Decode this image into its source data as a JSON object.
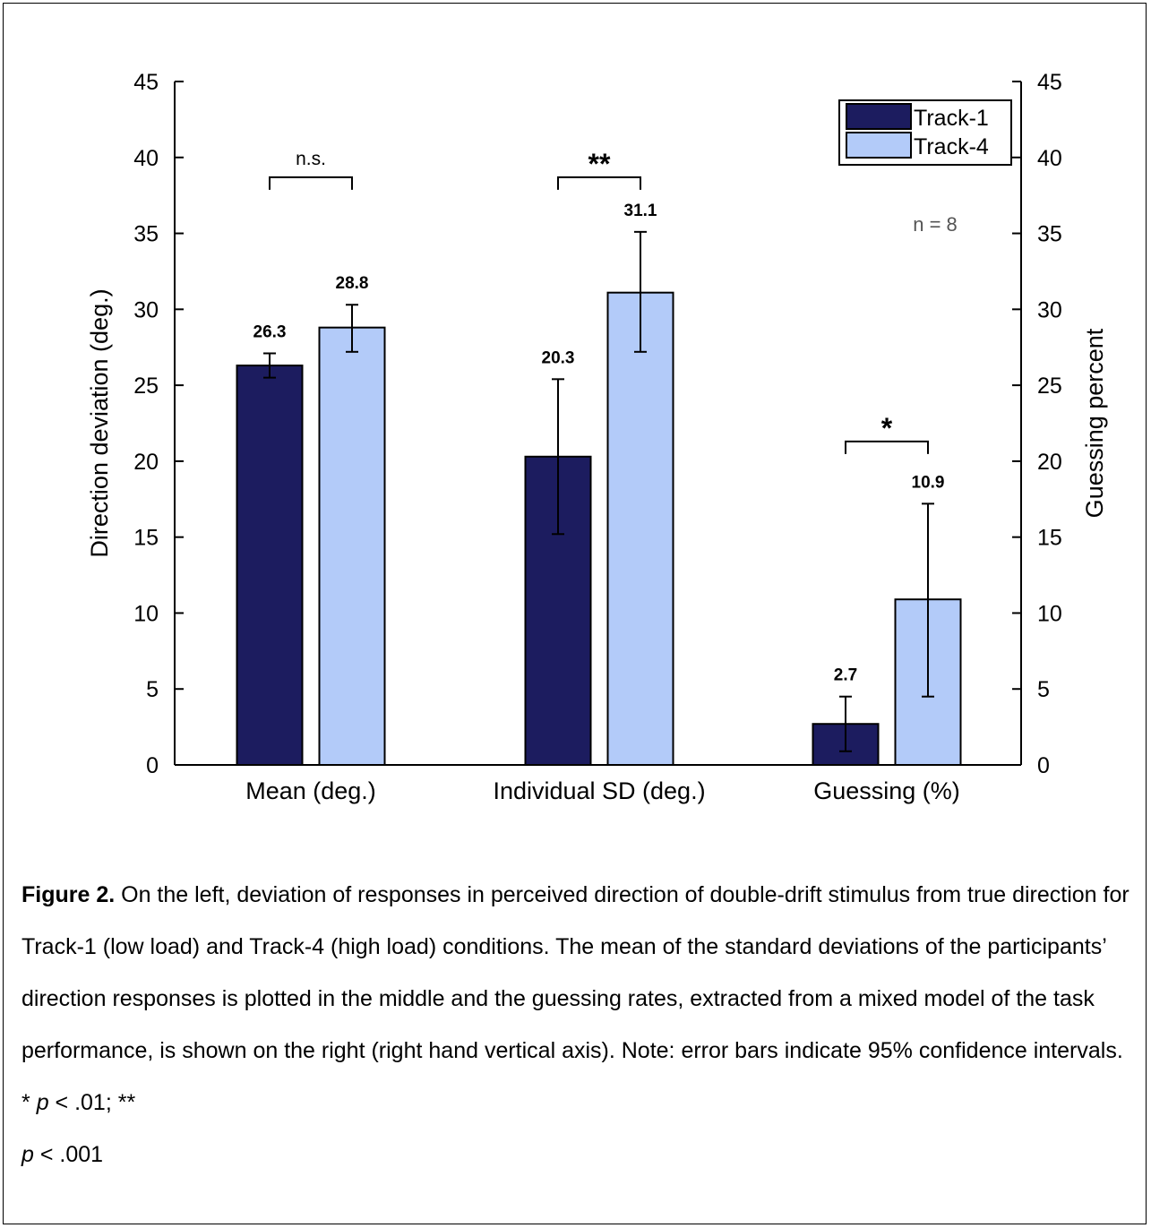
{
  "chart_data": {
    "type": "bar",
    "categories": [
      "Mean (deg.)",
      "Individual SD (deg.)",
      "Guessing (%)"
    ],
    "series": [
      {
        "name": "Track-1",
        "color": "#1c1c5f",
        "values": [
          26.3,
          20.3,
          2.7
        ],
        "ci_low": [
          25.5,
          15.2,
          0.9
        ],
        "ci_high": [
          27.1,
          25.4,
          4.5
        ],
        "labels": [
          "26.3",
          "20.3",
          "2.7"
        ]
      },
      {
        "name": "Track-4",
        "color": "#b3cbf9",
        "values": [
          28.8,
          31.1,
          10.9
        ],
        "ci_low": [
          27.2,
          27.2,
          4.5
        ],
        "ci_high": [
          30.3,
          35.1,
          17.2
        ],
        "labels": [
          "28.8",
          "31.1",
          "10.9"
        ]
      }
    ],
    "ylabel": "Direction deviation (deg.)",
    "ylabel_right": "Guessing percent",
    "ylim": [
      0,
      45
    ],
    "yticks": [
      0,
      5,
      10,
      15,
      20,
      25,
      30,
      35,
      40,
      45
    ],
    "grid": false,
    "legend_position": "top-right",
    "significance": [
      {
        "label": "n.s.",
        "category": 0,
        "y": 38.7
      },
      {
        "label": "**",
        "category": 1,
        "y": 38.7
      },
      {
        "label": "*",
        "category": 2,
        "y": 21.3
      }
    ],
    "annotation": "n = 8"
  },
  "caption": {
    "label": "Figure 2.",
    "text_1": " On the left, deviation of responses in perceived direction of double-drift stimulus from true direction for Track-1 (low load) and Track-4 (high load) conditions. The mean of the standard deviations of the participants’ direction responses is plotted in the middle and the guessing rates, extracted from a mixed model of the task performance, is shown on the right (right hand vertical axis). Note: error bars indicate 95% confidence intervals. * ",
    "p_symbol": "p",
    "text_2": " < .01;  ** ",
    "text_3": " < .001"
  }
}
